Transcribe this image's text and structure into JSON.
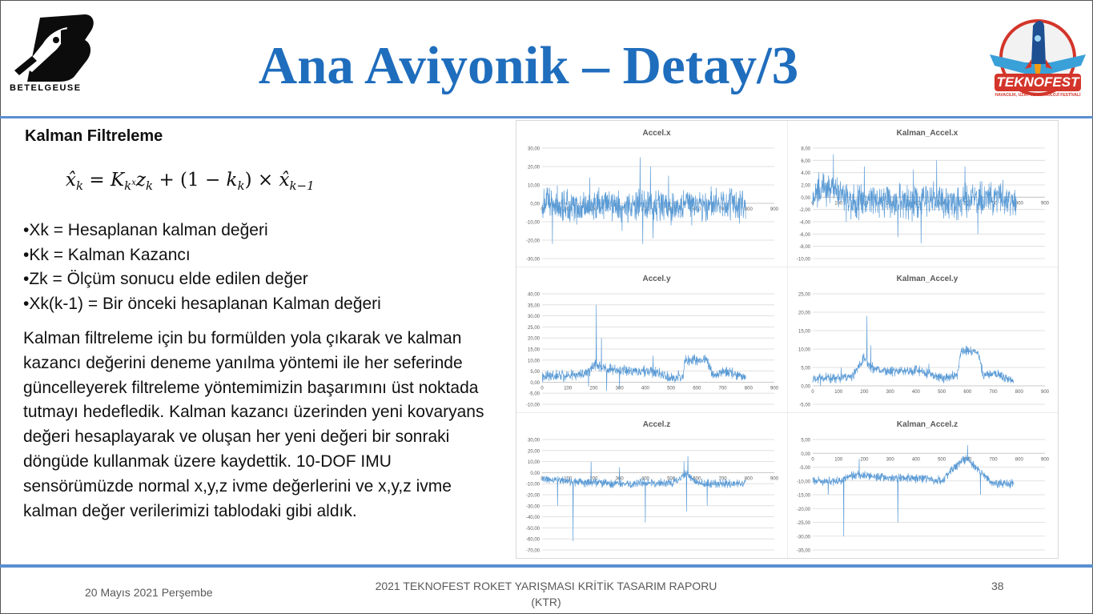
{
  "header": {
    "title": "Ana Aviyonik – Detay/3",
    "left_logo_text": "BETELGEUSE",
    "right_logo_text": "TEKNOFEST",
    "right_logo_subtext": "HAVACILIK, UZAY VE TEKNOLOJİ FESTİVALİ"
  },
  "content": {
    "section_title": "Kalman Filtreleme",
    "formula": {
      "lhs": "x̂",
      "lhs_sub": "k",
      "eq": "=",
      "k": "K",
      "k_sub": "k",
      "k_sup": "x",
      "z": "z",
      "z_sub": "k",
      "plus": "+",
      "paren_open": "(1 −",
      "k2": "k",
      "k2_sub": "k",
      "paren_close": ")",
      "times": "×",
      "x_prev": "x̂",
      "x_prev_sub": "k−1"
    },
    "bullets": [
      "•Xk = Hesaplanan kalman değeri",
      "•Kk = Kalman Kazancı",
      "•Zk = Ölçüm sonucu elde edilen değer",
      "•Xk(k-1) = Bir önceki hesaplanan Kalman değeri"
    ],
    "paragraph": "Kalman filtreleme için bu formülden yola çıkarak ve kalman kazancı değerini deneme yanılma yöntemi ile her seferinde güncelleyerek filtreleme yöntemimizin başarımını üst noktada tutmayı hedefledik. Kalman kazancı üzerinden yeni kovaryans değeri hesaplayarak ve oluşan her yeni değeri bir sonraki döngüde kullanmak üzere kaydettik. 10-DOF IMU sensörümüzde normal x,y,z ivme değerlerini ve x,y,z ivme kalman değer verilerimizi tablodaki gibi aldık."
  },
  "footer": {
    "date": "20 Mayıs 2021 Perşembe",
    "center_line1": "2021 TEKNOFEST ROKET YARIŞMASI KRİTİK TASARIM RAPORU",
    "center_line2": "(KTR)",
    "page": "38"
  },
  "colors": {
    "title": "#1f6dbd",
    "rule": "#5b8fd0",
    "series": "#5b9bd5",
    "grid": "#d9d9d9"
  },
  "chart_data": [
    {
      "type": "line",
      "title": "Accel.x",
      "xlabel": "",
      "ylabel": "",
      "xlim": [
        0,
        900
      ],
      "xticks": [
        "0",
        "100",
        "200",
        "300",
        "400",
        "500",
        "600",
        "700",
        "800",
        "900"
      ],
      "ylim": [
        -30,
        30
      ],
      "yticks": [
        "30,00",
        "20,00",
        "10,00",
        "0,00",
        "-10,00",
        "-20,00",
        "-30,00"
      ],
      "series": [
        {
          "profile": [
            [
              0,
              0
            ],
            [
              60,
              0
            ],
            [
              110,
              -2
            ],
            [
              160,
              -3
            ],
            [
              240,
              -1
            ],
            [
              280,
              -2
            ],
            [
              330,
              -1
            ],
            [
              400,
              -2
            ],
            [
              460,
              0
            ],
            [
              500,
              -3
            ],
            [
              560,
              -1
            ],
            [
              600,
              -1
            ],
            [
              700,
              -1
            ],
            [
              780,
              -1
            ]
          ],
          "noise": 8,
          "min": -22,
          "max": 25,
          "points": 790,
          "spikes": [
            [
              40,
              -22
            ],
            [
              185,
              14
            ],
            [
              310,
              -15
            ],
            [
              380,
              25
            ],
            [
              390,
              -24
            ],
            [
              420,
              20
            ],
            [
              430,
              -19
            ],
            [
              490,
              15
            ],
            [
              500,
              -12
            ],
            [
              580,
              -12
            ],
            [
              620,
              -10
            ],
            [
              700,
              -7
            ]
          ]
        }
      ]
    },
    {
      "type": "line",
      "title": "Kalman_Accel.x",
      "xlabel": "",
      "ylabel": "",
      "xlim": [
        0,
        900
      ],
      "xticks": [
        "0",
        "100",
        "200",
        "300",
        "400",
        "500",
        "600",
        "700",
        "800",
        "900"
      ],
      "ylim": [
        -10,
        8
      ],
      "yticks": [
        "8,00",
        "6,00",
        "4,00",
        "2,00",
        "0,00",
        "-2,00",
        "-4,00",
        "-6,00",
        "-8,00",
        "-10,00"
      ],
      "series": [
        {
          "profile": [
            [
              0,
              0
            ],
            [
              40,
              2
            ],
            [
              90,
              1
            ],
            [
              150,
              -1
            ],
            [
              240,
              -0.5
            ],
            [
              330,
              -0.5
            ],
            [
              400,
              -1
            ],
            [
              460,
              0
            ],
            [
              520,
              -1
            ],
            [
              600,
              -0.5
            ],
            [
              700,
              0
            ],
            [
              780,
              -0.5
            ]
          ],
          "noise": 2.4,
          "min": -7.5,
          "max": 7,
          "points": 790,
          "spikes": [
            [
              80,
              7
            ],
            [
              130,
              -4
            ],
            [
              200,
              5
            ],
            [
              330,
              -6.5
            ],
            [
              390,
              4.5
            ],
            [
              420,
              -7.5
            ],
            [
              480,
              6
            ],
            [
              590,
              5
            ],
            [
              640,
              -6
            ]
          ]
        }
      ]
    },
    {
      "type": "line",
      "title": "Accel.y",
      "xlabel": "",
      "ylabel": "",
      "xlim": [
        0,
        900
      ],
      "xticks": [
        "0",
        "100",
        "200",
        "300",
        "400",
        "500",
        "600",
        "700",
        "800",
        "900"
      ],
      "ylim": [
        -10,
        40
      ],
      "yticks": [
        "40,00",
        "35,00",
        "30,00",
        "25,00",
        "20,00",
        "15,00",
        "10,00",
        "5,00",
        "0,00",
        "-5,00",
        "-10,00"
      ],
      "series": [
        {
          "profile": [
            [
              0,
              3
            ],
            [
              120,
              3
            ],
            [
              180,
              4
            ],
            [
              200,
              8
            ],
            [
              240,
              6
            ],
            [
              330,
              5
            ],
            [
              420,
              5
            ],
            [
              500,
              2
            ],
            [
              545,
              3
            ],
            [
              555,
              10
            ],
            [
              640,
              10
            ],
            [
              660,
              3
            ],
            [
              720,
              5
            ],
            [
              790,
              2
            ]
          ],
          "noise": 2.2,
          "min": -4,
          "max": 35,
          "points": 790,
          "spikes": [
            [
              210,
              35
            ],
            [
              230,
              20
            ],
            [
              250,
              -4
            ],
            [
              180,
              -2
            ],
            [
              430,
              12
            ],
            [
              300,
              -3
            ]
          ]
        }
      ]
    },
    {
      "type": "line",
      "title": "Kalman_Accel.y",
      "xlabel": "",
      "ylabel": "",
      "xlim": [
        0,
        900
      ],
      "xticks": [
        "0",
        "100",
        "200",
        "300",
        "400",
        "500",
        "600",
        "700",
        "800",
        "900"
      ],
      "ylim": [
        -5,
        25
      ],
      "yticks": [
        "25,00",
        "20,00",
        "15,00",
        "10,00",
        "5,00",
        "0,00",
        "-5,00"
      ],
      "series": [
        {
          "profile": [
            [
              0,
              2
            ],
            [
              100,
              2
            ],
            [
              160,
              3
            ],
            [
              200,
              8
            ],
            [
              220,
              5
            ],
            [
              300,
              4
            ],
            [
              420,
              4
            ],
            [
              500,
              2
            ],
            [
              560,
              3
            ],
            [
              575,
              9.5
            ],
            [
              640,
              9.5
            ],
            [
              660,
              3
            ],
            [
              720,
              3
            ],
            [
              780,
              1
            ]
          ],
          "noise": 1.2,
          "min": -1,
          "max": 19,
          "points": 780,
          "spikes": [
            [
              210,
              19
            ],
            [
              225,
              11
            ],
            [
              30,
              0
            ],
            [
              110,
              5
            ],
            [
              450,
              6
            ]
          ]
        }
      ]
    },
    {
      "type": "line",
      "title": "Accel.z",
      "xlabel": "",
      "ylabel": "",
      "xlim": [
        0,
        900
      ],
      "xticks": [
        "0",
        "100",
        "200",
        "300",
        "400",
        "500",
        "600",
        "700",
        "800",
        "900"
      ],
      "ylim": [
        -70,
        30
      ],
      "yticks": [
        "30,00",
        "20,00",
        "10,00",
        "0,00",
        "-10,00",
        "-20,00",
        "-30,00",
        "-40,00",
        "-50,00",
        "-60,00",
        "-70,00"
      ],
      "series": [
        {
          "profile": [
            [
              0,
              -5
            ],
            [
              100,
              -8
            ],
            [
              200,
              -9
            ],
            [
              300,
              -10
            ],
            [
              400,
              -9
            ],
            [
              500,
              -10
            ],
            [
              540,
              -5
            ],
            [
              560,
              0
            ],
            [
              580,
              -5
            ],
            [
              600,
              -10
            ],
            [
              700,
              -10
            ],
            [
              790,
              -10
            ]
          ],
          "noise": 3.5,
          "min": -62,
          "max": 15,
          "points": 790,
          "spikes": [
            [
              120,
              -62
            ],
            [
              60,
              -30
            ],
            [
              190,
              10
            ],
            [
              300,
              -25
            ],
            [
              400,
              -45
            ],
            [
              550,
              10
            ],
            [
              565,
              15
            ],
            [
              560,
              -35
            ],
            [
              640,
              -30
            ],
            [
              300,
              5
            ]
          ]
        }
      ]
    },
    {
      "type": "line",
      "title": "Kalman_Accel.z",
      "xlabel": "",
      "ylabel": "",
      "xlim": [
        0,
        900
      ],
      "xticks": [
        "0",
        "100",
        "200",
        "300",
        "400",
        "500",
        "600",
        "700",
        "800",
        "900"
      ],
      "ylim": [
        -35,
        5
      ],
      "yticks": [
        "5,00",
        "0,00",
        "-5,00",
        "-10,00",
        "-15,00",
        "-20,00",
        "-25,00",
        "-30,00",
        "-35,00"
      ],
      "series": [
        {
          "profile": [
            [
              0,
              -10
            ],
            [
              100,
              -10
            ],
            [
              150,
              -8
            ],
            [
              200,
              -8
            ],
            [
              300,
              -9
            ],
            [
              420,
              -9
            ],
            [
              500,
              -10
            ],
            [
              560,
              -4
            ],
            [
              600,
              -2
            ],
            [
              640,
              -6
            ],
            [
              700,
              -11
            ],
            [
              780,
              -11
            ]
          ],
          "noise": 1.4,
          "min": -30,
          "max": 3,
          "points": 780,
          "spikes": [
            [
              120,
              -30
            ],
            [
              60,
              -15
            ],
            [
              330,
              -25
            ],
            [
              560,
              -6
            ],
            [
              600,
              3
            ],
            [
              650,
              -15
            ],
            [
              180,
              -2
            ]
          ]
        }
      ]
    }
  ]
}
